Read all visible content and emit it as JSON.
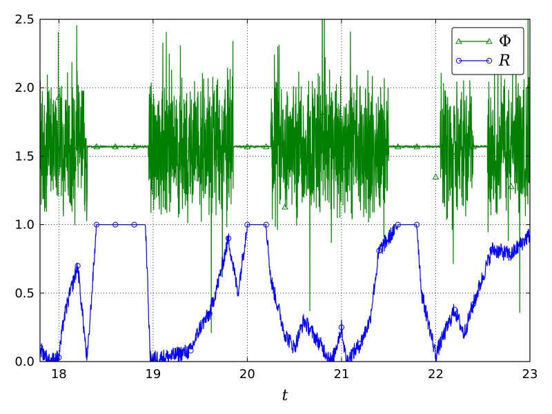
{
  "chart_data": {
    "type": "line",
    "xlabel": "t",
    "ylabel": "",
    "xlim": [
      17.8,
      23.0
    ],
    "ylim": [
      0.0,
      2.5
    ],
    "xticks": [
      "18",
      "19",
      "20",
      "21",
      "22",
      "23"
    ],
    "yticks": [
      "0.0",
      "0.5",
      "1.0",
      "1.5",
      "2.0",
      "2.5"
    ],
    "grid": true,
    "legend_position": "top-right",
    "series": [
      {
        "name": "Φ",
        "color": "#008000",
        "marker": "triangle",
        "baseline": 1.57,
        "noisy_intervals": [
          [
            17.8,
            18.3
          ],
          [
            18.95,
            19.85
          ],
          [
            20.25,
            21.0
          ],
          [
            21.0,
            21.5
          ],
          [
            22.05,
            22.4
          ],
          [
            22.55,
            23.0
          ]
        ],
        "marker_points": [
          [
            17.8,
            1.58
          ],
          [
            18.0,
            1.93
          ],
          [
            18.2,
            1.57
          ],
          [
            18.4,
            1.57
          ],
          [
            18.6,
            1.57
          ],
          [
            18.8,
            1.57
          ],
          [
            19.0,
            1.55
          ],
          [
            19.2,
            1.5
          ],
          [
            19.4,
            1.55
          ],
          [
            19.6,
            1.58
          ],
          [
            19.8,
            1.58
          ],
          [
            20.0,
            1.57
          ],
          [
            20.2,
            1.57
          ],
          [
            20.4,
            1.13
          ],
          [
            20.6,
            1.42
          ],
          [
            20.8,
            1.8
          ],
          [
            21.0,
            1.42
          ],
          [
            21.2,
            1.5
          ],
          [
            21.4,
            1.55
          ],
          [
            21.6,
            1.57
          ],
          [
            21.8,
            1.57
          ],
          [
            22.0,
            1.35
          ],
          [
            22.2,
            1.5
          ],
          [
            22.4,
            1.57
          ],
          [
            22.6,
            1.57
          ],
          [
            22.8,
            1.28
          ],
          [
            23.0,
            1.57
          ]
        ]
      },
      {
        "name": "R",
        "color": "#0000ff",
        "marker": "circle",
        "points": [
          [
            17.8,
            0.1
          ],
          [
            17.9,
            0.0
          ],
          [
            18.0,
            0.03
          ],
          [
            18.05,
            0.3
          ],
          [
            18.1,
            0.45
          ],
          [
            18.2,
            0.7
          ],
          [
            18.3,
            0.0
          ],
          [
            18.4,
            1.0
          ],
          [
            18.6,
            1.0
          ],
          [
            18.8,
            1.0
          ],
          [
            18.92,
            1.0
          ],
          [
            18.97,
            0.02
          ],
          [
            19.2,
            0.04
          ],
          [
            19.4,
            0.08
          ],
          [
            19.5,
            0.25
          ],
          [
            19.6,
            0.35
          ],
          [
            19.7,
            0.6
          ],
          [
            19.8,
            0.9
          ],
          [
            19.9,
            0.5
          ],
          [
            20.0,
            1.0
          ],
          [
            20.2,
            1.0
          ],
          [
            20.25,
            0.6
          ],
          [
            20.4,
            0.2
          ],
          [
            20.5,
            0.1
          ],
          [
            20.6,
            0.3
          ],
          [
            20.8,
            0.1
          ],
          [
            20.9,
            0.0
          ],
          [
            21.0,
            0.25
          ],
          [
            21.05,
            0.0
          ],
          [
            21.2,
            0.13
          ],
          [
            21.3,
            0.3
          ],
          [
            21.4,
            0.81
          ],
          [
            21.5,
            0.9
          ],
          [
            21.6,
            1.0
          ],
          [
            21.8,
            1.0
          ],
          [
            21.85,
            0.5
          ],
          [
            22.0,
            0.05
          ],
          [
            22.2,
            0.38
          ],
          [
            22.3,
            0.2
          ],
          [
            22.4,
            0.42
          ],
          [
            22.6,
            0.82
          ],
          [
            22.8,
            0.78
          ],
          [
            23.0,
            0.93
          ]
        ]
      }
    ]
  }
}
